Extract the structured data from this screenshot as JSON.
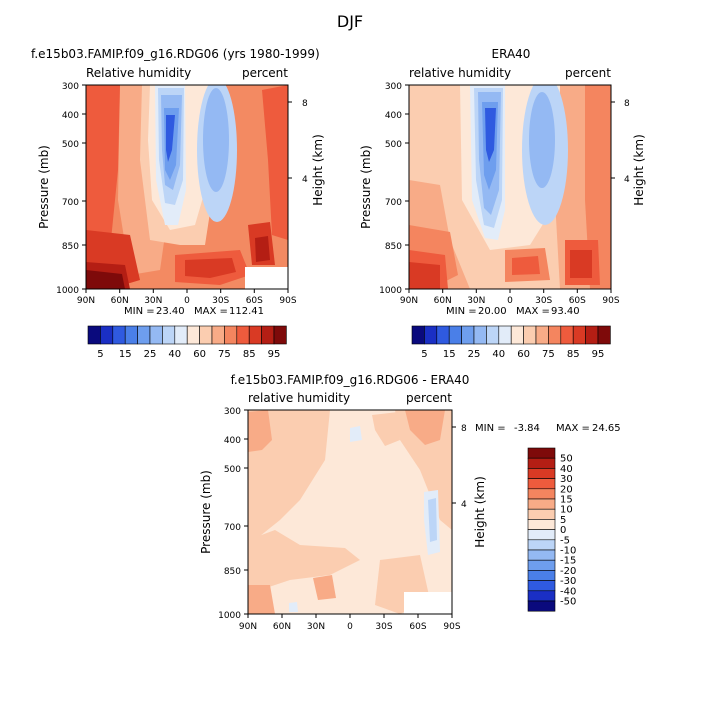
{
  "figure": {
    "title": "DJF"
  },
  "chart_data": [
    {
      "type": "heatmap",
      "title": "f.e15b03.FAMIP.f09_g16.RDG06 (yrs 1980-1999)",
      "left_string": "Relative humidity",
      "right_string": "percent",
      "ylabel": "Pressure (mb)",
      "ylabel_right": "Height (km)",
      "x_ticks": [
        "90N",
        "60N",
        "30N",
        "0",
        "30S",
        "60S",
        "90S"
      ],
      "y_ticks": [
        "300",
        "400",
        "500",
        "700",
        "850",
        "1000"
      ],
      "y_right_ticks": [
        "8",
        "4"
      ],
      "stats": {
        "min_label": "MIN =",
        "min": "23.40",
        "max_label": "MAX =",
        "max": "112.41"
      },
      "colorbar": {
        "orientation": "horizontal",
        "labels": [
          "5",
          "15",
          "25",
          "40",
          "60",
          "75",
          "85",
          "95"
        ],
        "colors": [
          "#0a0a7d",
          "#1a2fc4",
          "#2f5ae0",
          "#4a7fe8",
          "#6e9eee",
          "#94b9f3",
          "#bcd5f7",
          "#e2ecf9",
          "#fde8d8",
          "#fbcdb0",
          "#f8ab87",
          "#f4855f",
          "#ee5b3d",
          "#d93a24",
          "#b41e14",
          "#7e0a0a"
        ]
      }
    },
    {
      "type": "heatmap",
      "title": "ERA40",
      "left_string": "relative humidity",
      "right_string": "percent",
      "ylabel": "Pressure (mb)",
      "ylabel_right": "Height (km)",
      "x_ticks": [
        "90N",
        "60N",
        "30N",
        "0",
        "30S",
        "60S",
        "90S"
      ],
      "y_ticks": [
        "300",
        "400",
        "500",
        "700",
        "850",
        "1000"
      ],
      "y_right_ticks": [
        "8",
        "4"
      ],
      "stats": {
        "min_label": "MIN =",
        "min": "20.00",
        "max_label": "MAX =",
        "max": "93.40"
      },
      "colorbar": {
        "orientation": "horizontal",
        "labels": [
          "5",
          "15",
          "25",
          "40",
          "60",
          "75",
          "85",
          "95"
        ],
        "colors": [
          "#0a0a7d",
          "#1a2fc4",
          "#2f5ae0",
          "#4a7fe8",
          "#6e9eee",
          "#94b9f3",
          "#bcd5f7",
          "#e2ecf9",
          "#fde8d8",
          "#fbcdb0",
          "#f8ab87",
          "#f4855f",
          "#ee5b3d",
          "#d93a24",
          "#b41e14",
          "#7e0a0a"
        ]
      }
    },
    {
      "type": "heatmap",
      "title": "f.e15b03.FAMIP.f09_g16.RDG06 - ERA40",
      "left_string": "relative humidity",
      "right_string": "percent",
      "ylabel": "Pressure (mb)",
      "ylabel_right": "Height (km)",
      "x_ticks": [
        "90N",
        "60N",
        "30N",
        "0",
        "30S",
        "60S",
        "90S"
      ],
      "y_ticks": [
        "300",
        "400",
        "500",
        "700",
        "850",
        "1000"
      ],
      "y_right_ticks": [
        "8",
        "4"
      ],
      "stats": {
        "min_label": "MIN =",
        "min": "-3.84",
        "max_label": "MAX =",
        "max": "24.65"
      },
      "colorbar": {
        "orientation": "vertical",
        "labels": [
          "50",
          "40",
          "30",
          "20",
          "15",
          "10",
          "5",
          "0",
          "-5",
          "-10",
          "-15",
          "-20",
          "-30",
          "-40",
          "-50"
        ],
        "colors": [
          "#7e0a0a",
          "#b41e14",
          "#d93a24",
          "#ee5b3d",
          "#f4855f",
          "#f8ab87",
          "#fbcdb0",
          "#fde8d8",
          "#e2ecf9",
          "#bcd5f7",
          "#94b9f3",
          "#6e9eee",
          "#4a7fe8",
          "#2f5ae0",
          "#1a2fc4",
          "#0a0a7d"
        ]
      }
    }
  ]
}
